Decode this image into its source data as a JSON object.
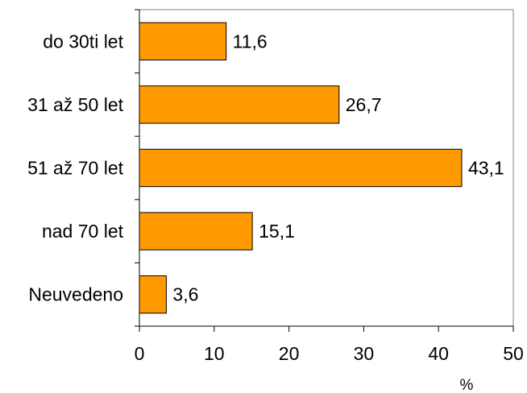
{
  "chart_data": {
    "type": "bar",
    "orientation": "horizontal",
    "categories": [
      "do 30ti let",
      "31 až 50 let",
      "51 až 70 let",
      "nad 70 let",
      "Neuvedeno"
    ],
    "values": [
      11.6,
      26.7,
      43.1,
      15.1,
      3.6
    ],
    "value_labels": [
      "11,6",
      "26,7",
      "43,1",
      "15,1",
      "3,6"
    ],
    "xlabel": "%",
    "xlim": [
      0,
      50
    ],
    "xticks": [
      0,
      10,
      20,
      30,
      40,
      50
    ],
    "grid": false,
    "legend": "none",
    "colors": {
      "bar_fill": "#FF9900",
      "bar_stroke": "#000000",
      "axis": "#000000",
      "frame": "#808080"
    }
  }
}
